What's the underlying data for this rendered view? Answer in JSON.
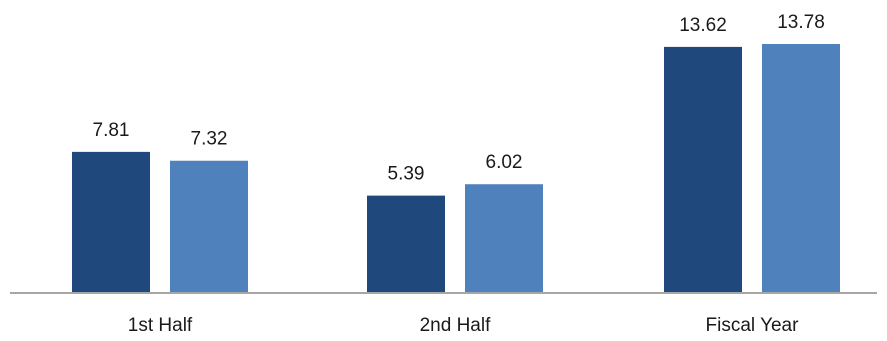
{
  "chart_data": {
    "type": "bar",
    "title": "",
    "xlabel": "",
    "ylabel": "",
    "categories": [
      "1st Half",
      "2nd Half",
      "Fiscal Year"
    ],
    "series": [
      {
        "values": [
          7.81,
          5.39,
          13.62
        ],
        "color": "#1f497d"
      },
      {
        "values": [
          7.32,
          6.02,
          13.78
        ],
        "color": "#4f81bd"
      }
    ],
    "data_labels": [
      [
        "7.81",
        "5.39",
        "13.62"
      ],
      [
        "7.32",
        "6.02",
        "13.78"
      ]
    ],
    "ylim": [
      0,
      14.5
    ],
    "grid": false,
    "legend": "none",
    "axis_color": "#a6a6a6"
  }
}
